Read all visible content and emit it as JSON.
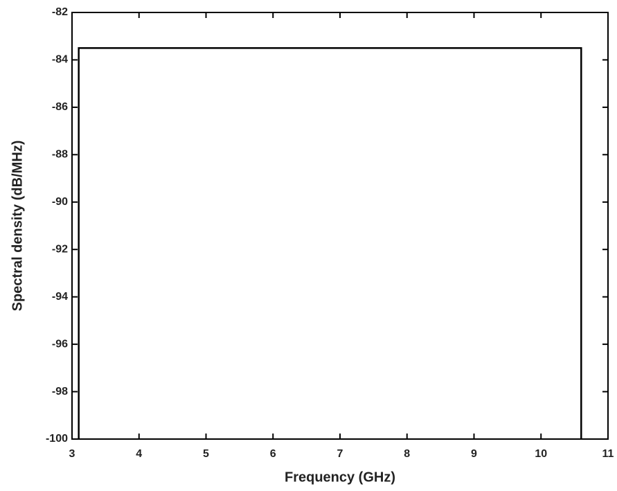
{
  "chart_data": {
    "type": "line",
    "xlabel": "Frequency (GHz)",
    "ylabel": "Spectral density (dB/MHz)",
    "series": [
      {
        "x": [
          3.1,
          3.1,
          10.6,
          10.6
        ],
        "values": [
          -100,
          -83.5,
          -83.5,
          -100
        ],
        "color": "#000000"
      }
    ],
    "xlim": [
      3,
      11
    ],
    "xticks": [
      3,
      4,
      5,
      6,
      7,
      8,
      9,
      10,
      11
    ],
    "ylim": [
      -100,
      -82
    ],
    "yticks": [
      -100,
      -98,
      -96,
      -94,
      -92,
      -90,
      -88,
      -86,
      -84,
      -82
    ],
    "grid": false
  }
}
